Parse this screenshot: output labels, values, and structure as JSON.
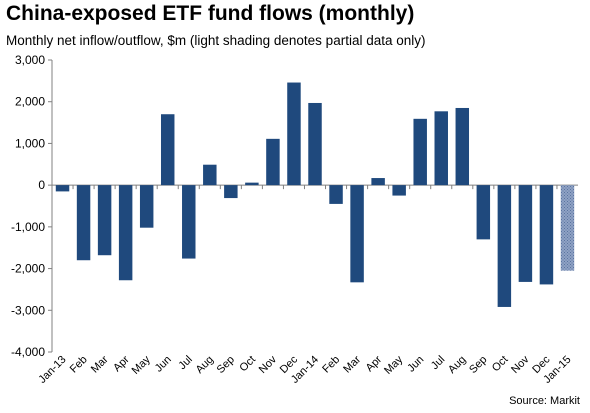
{
  "chart_data": {
    "type": "bar",
    "title": "China-exposed  ETF fund flows (monthly)",
    "subtitle": "Monthly net inflow/outflow, $m (light shading denotes partial data only)",
    "source": "Source: Markit",
    "xlabel": "",
    "ylabel": "",
    "ylim": [
      -4000,
      3000
    ],
    "yticks": [
      3000,
      2000,
      1000,
      0,
      -1000,
      -2000,
      -3000,
      -4000
    ],
    "ytick_labels": [
      "3,000",
      "2,000",
      "1,000",
      "0",
      "-1,000",
      "-2,000",
      "-3,000",
      "-4,000"
    ],
    "grid": false,
    "legend": "none",
    "categories": [
      "Jan-13",
      "Feb",
      "Mar",
      "Apr",
      "May",
      "Jun",
      "Jul",
      "Aug",
      "Sep",
      "Oct",
      "Nov",
      "Dec",
      "Jan-14",
      "Feb",
      "Mar",
      "Apr",
      "May",
      "Jun",
      "Jul",
      "Aug",
      "Sep",
      "Oct",
      "Nov",
      "Dec",
      "Jan-15"
    ],
    "values": [
      -150,
      -1800,
      -1680,
      -2280,
      -1020,
      1700,
      -1760,
      490,
      -310,
      60,
      1110,
      2460,
      1970,
      -450,
      -2330,
      170,
      -250,
      1590,
      1770,
      1850,
      -1300,
      -2920,
      -2320,
      -2380,
      -2050
    ],
    "partial": [
      false,
      false,
      false,
      false,
      false,
      false,
      false,
      false,
      false,
      false,
      false,
      false,
      false,
      false,
      false,
      false,
      false,
      false,
      false,
      false,
      false,
      false,
      false,
      false,
      true
    ],
    "colors": {
      "bar": "#1f497d",
      "partial_bar": "#8fa2c4",
      "axis": "#808080"
    }
  }
}
